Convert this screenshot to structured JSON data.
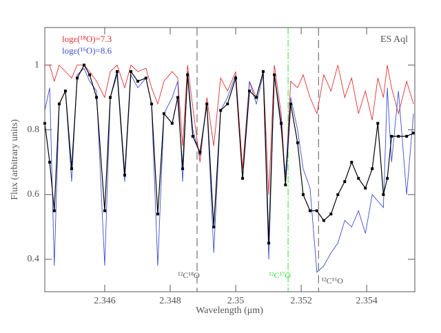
{
  "chart_data": {
    "type": "line",
    "title": "ES Aql",
    "x_label": "Wavelength (μm)",
    "y_label": "Flux (arbitrary units)",
    "xlim": [
      2.34417,
      2.35547
    ],
    "ylim": [
      0.3,
      1.116
    ],
    "xticks": [
      2.346,
      2.348,
      2.35,
      2.352,
      2.354
    ],
    "yticks": [
      0.4,
      0.6,
      0.8,
      1
    ],
    "x": [
      2.34417,
      2.34432,
      2.34446,
      2.34461,
      2.3448,
      2.34499,
      2.34516,
      2.34537,
      2.34554,
      2.34575,
      2.346,
      2.34617,
      2.34638,
      2.34661,
      2.3468,
      2.34701,
      2.34726,
      2.34743,
      2.34762,
      2.34781,
      2.34806,
      2.34823,
      2.34838,
      2.34853,
      2.34869,
      2.34891,
      2.34912,
      2.34933,
      2.34954,
      2.34975,
      2.35,
      2.35021,
      2.35042,
      2.35063,
      2.35084,
      2.35101,
      2.35118,
      2.35139,
      2.35152,
      2.35168,
      2.35189,
      2.35206,
      2.35227,
      2.35248,
      2.35269,
      2.35291,
      2.35312,
      2.35333,
      2.35354,
      2.35375,
      2.35396,
      2.35417,
      2.35434,
      2.35451,
      2.35463,
      2.35476,
      2.35497,
      2.35522,
      2.35543
    ],
    "series": [
      {
        "name": "logε(¹⁸O)=7.3",
        "color": "#e03030",
        "style": "line",
        "values": [
          1.0,
          1.0,
          0.95,
          1.0,
          0.98,
          0.96,
          1.0,
          1.0,
          0.98,
          0.95,
          0.9,
          0.98,
          1.0,
          0.93,
          1.0,
          0.98,
          0.99,
          0.93,
          0.88,
          0.95,
          0.98,
          0.96,
          0.75,
          1.0,
          0.87,
          0.7,
          0.9,
          0.75,
          0.96,
          0.92,
          0.98,
          0.68,
          0.95,
          0.9,
          0.98,
          0.6,
          1.0,
          0.85,
          0.64,
          0.95,
          0.93,
          0.97,
          0.9,
          0.85,
          0.97,
          0.92,
          1.0,
          0.9,
          0.96,
          0.85,
          0.92,
          0.83,
          0.96,
          0.9,
          1.0,
          0.93,
          0.85,
          0.95,
          0.88
        ]
      },
      {
        "name": "logε(¹⁶O)=8.6",
        "color": "#3a4fd0",
        "style": "line",
        "values": [
          0.86,
          0.93,
          0.38,
          0.88,
          0.92,
          0.64,
          0.97,
          0.99,
          0.95,
          0.92,
          0.38,
          0.9,
          0.97,
          0.64,
          0.97,
          0.93,
          0.96,
          0.88,
          0.38,
          0.85,
          0.9,
          0.95,
          0.64,
          0.98,
          0.8,
          0.72,
          0.88,
          0.42,
          0.86,
          0.9,
          0.97,
          0.65,
          0.95,
          0.88,
          0.97,
          0.4,
          0.97,
          0.8,
          0.66,
          0.9,
          0.8,
          0.68,
          0.62,
          0.36,
          0.38,
          0.42,
          0.45,
          0.52,
          0.5,
          0.55,
          0.48,
          0.6,
          0.58,
          0.56,
          0.93,
          0.7,
          0.92,
          0.6,
          0.85
        ]
      },
      {
        "color": "#000000",
        "style": "points",
        "values": [
          0.82,
          0.7,
          0.55,
          0.88,
          0.92,
          0.68,
          0.96,
          1.0,
          0.97,
          0.9,
          0.55,
          0.9,
          0.98,
          0.66,
          0.98,
          0.95,
          0.96,
          0.88,
          0.54,
          0.85,
          0.82,
          0.9,
          0.68,
          0.97,
          0.78,
          0.73,
          0.88,
          0.5,
          0.86,
          0.88,
          0.96,
          0.65,
          0.92,
          0.9,
          0.98,
          0.45,
          0.97,
          0.82,
          0.63,
          0.88,
          0.76,
          0.6,
          0.55,
          0.55,
          0.52,
          0.54,
          0.6,
          0.64,
          0.7,
          0.65,
          0.62,
          0.68,
          0.82,
          0.6,
          0.65,
          0.78,
          0.78,
          0.78,
          0.79
        ]
      }
    ],
    "markers": [
      {
        "x": 2.34882,
        "label": "¹²C¹⁸O",
        "color": "#555555"
      },
      {
        "x": 2.3516,
        "label": "¹²C¹⁷O",
        "color": "#33dd33"
      },
      {
        "x": 2.35253,
        "label": "¹²C¹⁶O",
        "color": "#555555"
      }
    ]
  }
}
